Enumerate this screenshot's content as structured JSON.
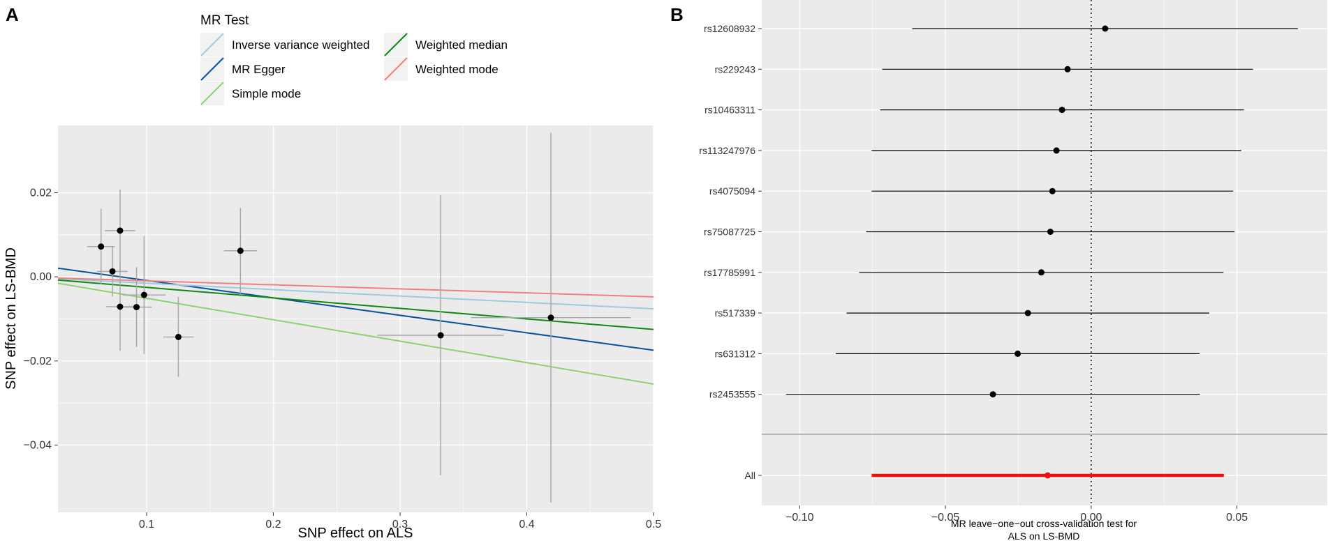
{
  "panel_labels": {
    "a": "A",
    "b": "B"
  },
  "colors": {
    "panel_bg": "#ebebeb",
    "grid": "#ffffff",
    "scatter_point": "#000000",
    "scatter_errorbar": "#a8a8a8",
    "forest_point": "#000000",
    "summary": "#ee1111"
  },
  "chart_data": [
    {
      "panel": "A",
      "type": "scatter",
      "title": "",
      "xlabel": "SNP effect on ALS",
      "ylabel": "SNP effect on LS-BMD",
      "xlim": [
        0.03,
        0.5
      ],
      "ylim": [
        -0.056,
        0.036
      ],
      "x_ticks": [
        0.1,
        0.2,
        0.3,
        0.4,
        0.5
      ],
      "x_tick_labels": [
        "0.1",
        "0.2",
        "0.3",
        "0.4",
        "0.5"
      ],
      "y_ticks": [
        -0.04,
        -0.02,
        0.0,
        0.02
      ],
      "y_tick_labels": [
        "−0.04",
        "−0.02",
        "0.00",
        "0.02"
      ],
      "grid": true,
      "legend": {
        "title": "MR Test",
        "position": "top",
        "entries": [
          {
            "label": "Inverse variance weighted",
            "color": "#9ecae1"
          },
          {
            "label": "MR Egger",
            "color": "#08519c"
          },
          {
            "label": "Simple mode",
            "color": "#8ed16f"
          },
          {
            "label": "Weighted median",
            "color": "#118811"
          },
          {
            "label": "Weighted mode",
            "color": "#f08080"
          }
        ]
      },
      "points": [
        {
          "x": 0.064,
          "y": 0.0072,
          "xerr": 0.011,
          "yerr": 0.009
        },
        {
          "x": 0.073,
          "y": 0.0013,
          "xerr": 0.012,
          "yerr": 0.006
        },
        {
          "x": 0.079,
          "y": 0.011,
          "xerr": 0.012,
          "yerr": 0.0098
        },
        {
          "x": 0.079,
          "y": -0.0071,
          "xerr": 0.011,
          "yerr": 0.0105
        },
        {
          "x": 0.092,
          "y": -0.0072,
          "xerr": 0.012,
          "yerr": 0.0095
        },
        {
          "x": 0.098,
          "y": -0.0043,
          "xerr": 0.017,
          "yerr": 0.014
        },
        {
          "x": 0.125,
          "y": -0.0143,
          "xerr": 0.012,
          "yerr": 0.0095
        },
        {
          "x": 0.174,
          "y": 0.0062,
          "xerr": 0.013,
          "yerr": 0.0102
        },
        {
          "x": 0.332,
          "y": -0.0139,
          "xerr": 0.05,
          "yerr": 0.0333
        },
        {
          "x": 0.419,
          "y": -0.0097,
          "xerr": 0.063,
          "yerr": 0.044
        }
      ],
      "lines": [
        {
          "method": "Inverse variance weighted",
          "intercept": 0.0,
          "slope": -0.0152
        },
        {
          "method": "MR Egger",
          "intercept": 0.0033,
          "slope": -0.0415
        },
        {
          "method": "Simple mode",
          "intercept": 0.0,
          "slope": -0.051
        },
        {
          "method": "Weighted median",
          "intercept": 0.0,
          "slope": -0.025
        },
        {
          "method": "Weighted mode",
          "intercept": 0.0,
          "slope": -0.0095
        }
      ]
    },
    {
      "panel": "B",
      "type": "forest",
      "title": "",
      "xlabel": "MR leave−one−out cross-validation test for",
      "xlabel2": "ALS on LS-BMD",
      "ylabel": "",
      "xlim": [
        -0.113,
        0.081
      ],
      "x_ticks": [
        -0.1,
        -0.05,
        0.0,
        0.05
      ],
      "x_tick_labels": [
        "−0.10",
        "−0.05",
        "0.00",
        "0.05"
      ],
      "reference_line_x": 0,
      "grid": true,
      "snps": [
        {
          "label": "rs12608932",
          "estimate": 0.0048,
          "lower": -0.0614,
          "upper": 0.0709
        },
        {
          "label": "rs229243",
          "estimate": -0.0081,
          "lower": -0.0717,
          "upper": 0.0555
        },
        {
          "label": "rs10463311",
          "estimate": -0.01,
          "lower": -0.0724,
          "upper": 0.0524
        },
        {
          "label": "rs113247976",
          "estimate": -0.0119,
          "lower": -0.0753,
          "upper": 0.0515
        },
        {
          "label": "rs4075094",
          "estimate": -0.0133,
          "lower": -0.0753,
          "upper": 0.0487
        },
        {
          "label": "rs75087725",
          "estimate": -0.014,
          "lower": -0.0772,
          "upper": 0.0492
        },
        {
          "label": "rs17785991",
          "estimate": -0.0171,
          "lower": -0.0796,
          "upper": 0.0454
        },
        {
          "label": "rs517339",
          "estimate": -0.0217,
          "lower": -0.0839,
          "upper": 0.0405
        },
        {
          "label": "rs631312",
          "estimate": -0.0252,
          "lower": -0.0876,
          "upper": 0.0372
        },
        {
          "label": "rs2453555",
          "estimate": -0.0337,
          "lower": -0.1047,
          "upper": 0.0373
        }
      ],
      "summary": {
        "label": "All",
        "estimate": -0.0149,
        "lower": -0.0753,
        "upper": 0.0455
      }
    }
  ]
}
